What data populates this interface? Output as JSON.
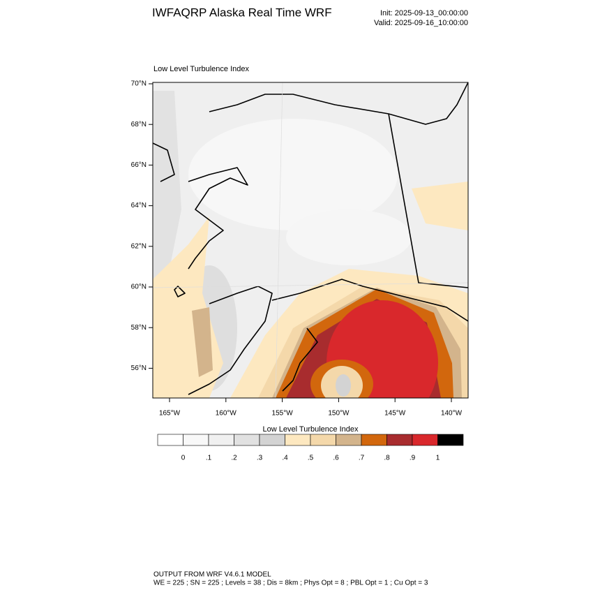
{
  "header": {
    "title": "IWFAQRP Alaska Real Time WRF",
    "init": "Init: 2025-09-13_00:00:00",
    "valid": "Valid: 2025-09-16_10:00:00"
  },
  "plot": {
    "title": "Low Level Turbulence Index",
    "lat_labels": [
      "70°N",
      "68°N",
      "66°N",
      "64°N",
      "62°N",
      "60°N",
      "58°N",
      "56°N"
    ],
    "lon_labels": [
      "165°W",
      "160°W",
      "155°W",
      "150°W",
      "145°W",
      "140°W"
    ]
  },
  "colorbar": {
    "title": "Low Level Turbulence Index",
    "colors": [
      "#ffffff",
      "#f8f8f8",
      "#f0f0f0",
      "#e1e1e1",
      "#d3d3d3",
      "#fde8c0",
      "#f4d8aa",
      "#d3b48c",
      "#d2670d",
      "#a82c2e",
      "#d9282c",
      "#000000"
    ],
    "labels": [
      "0",
      ".1",
      ".2",
      ".3",
      ".4",
      ".5",
      ".6",
      ".7",
      ".8",
      ".9",
      "1"
    ]
  },
  "footer": {
    "line1": "OUTPUT FROM WRF V4.6.1 MODEL",
    "line2": "WE = 225 ; SN = 225 ; Levels = 38 ; Dis = 8km ; Phys Opt = 8 ; PBL Opt = 1 ; Cu Opt = 3"
  }
}
